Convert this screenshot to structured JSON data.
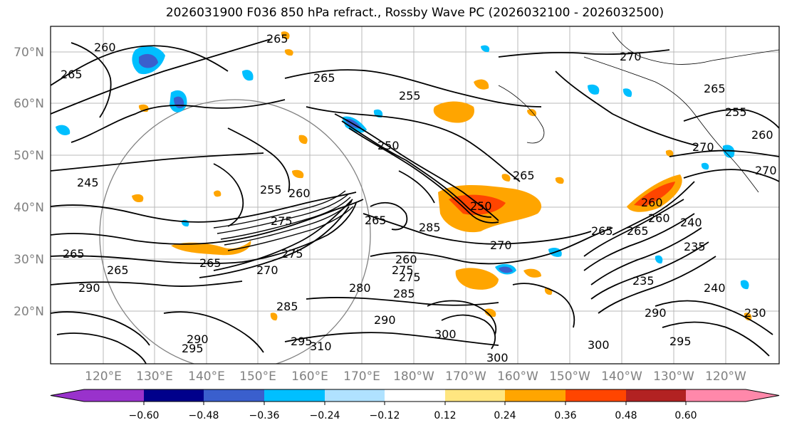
{
  "title": "2026031900 F036 850 hPa refract., Rossby Wave PC (2026032100 - 2026032500)",
  "map": {
    "lat_ticks": [
      "70°N",
      "60°N",
      "50°N",
      "40°N",
      "30°N",
      "20°N"
    ],
    "lon_ticks": [
      "120°E",
      "130°E",
      "140°E",
      "150°E",
      "160°E",
      "170°E",
      "180°W",
      "170°W",
      "160°W",
      "150°W",
      "140°W",
      "130°W",
      "120°W"
    ],
    "contour_labels": [
      "260",
      "265",
      "265",
      "265",
      "270",
      "265",
      "255",
      "260",
      "270",
      "250",
      "255",
      "265",
      "245",
      "255",
      "260",
      "270",
      "250",
      "260",
      "265",
      "270",
      "265",
      "260",
      "240",
      "235",
      "265",
      "275",
      "265",
      "260",
      "275",
      "270",
      "265",
      "275",
      "280",
      "285",
      "235",
      "240",
      "230",
      "290",
      "285",
      "290",
      "295",
      "300",
      "295",
      "310",
      "300",
      "290",
      "295",
      "300",
      "285",
      "290",
      "265",
      "275"
    ]
  },
  "colorbar": {
    "tick_labels": [
      "−0.60",
      "−0.48",
      "−0.36",
      "−0.24",
      "−0.12",
      "0.12",
      "0.24",
      "0.36",
      "0.48",
      "0.60"
    ],
    "bin_colors": [
      "#9932CC",
      "#00008B",
      "#3A5FCD",
      "#00BFFF",
      "#B0E2FF",
      "#FFFFFF",
      "#FFE680",
      "#FFA500",
      "#FF4500",
      "#B22222",
      "#FF88AA"
    ]
  },
  "colors": {
    "positive": "#FFA500",
    "negative": "#00BFFF",
    "contour": "#000000",
    "grid": "#808080",
    "tick_label": "#808080"
  }
}
